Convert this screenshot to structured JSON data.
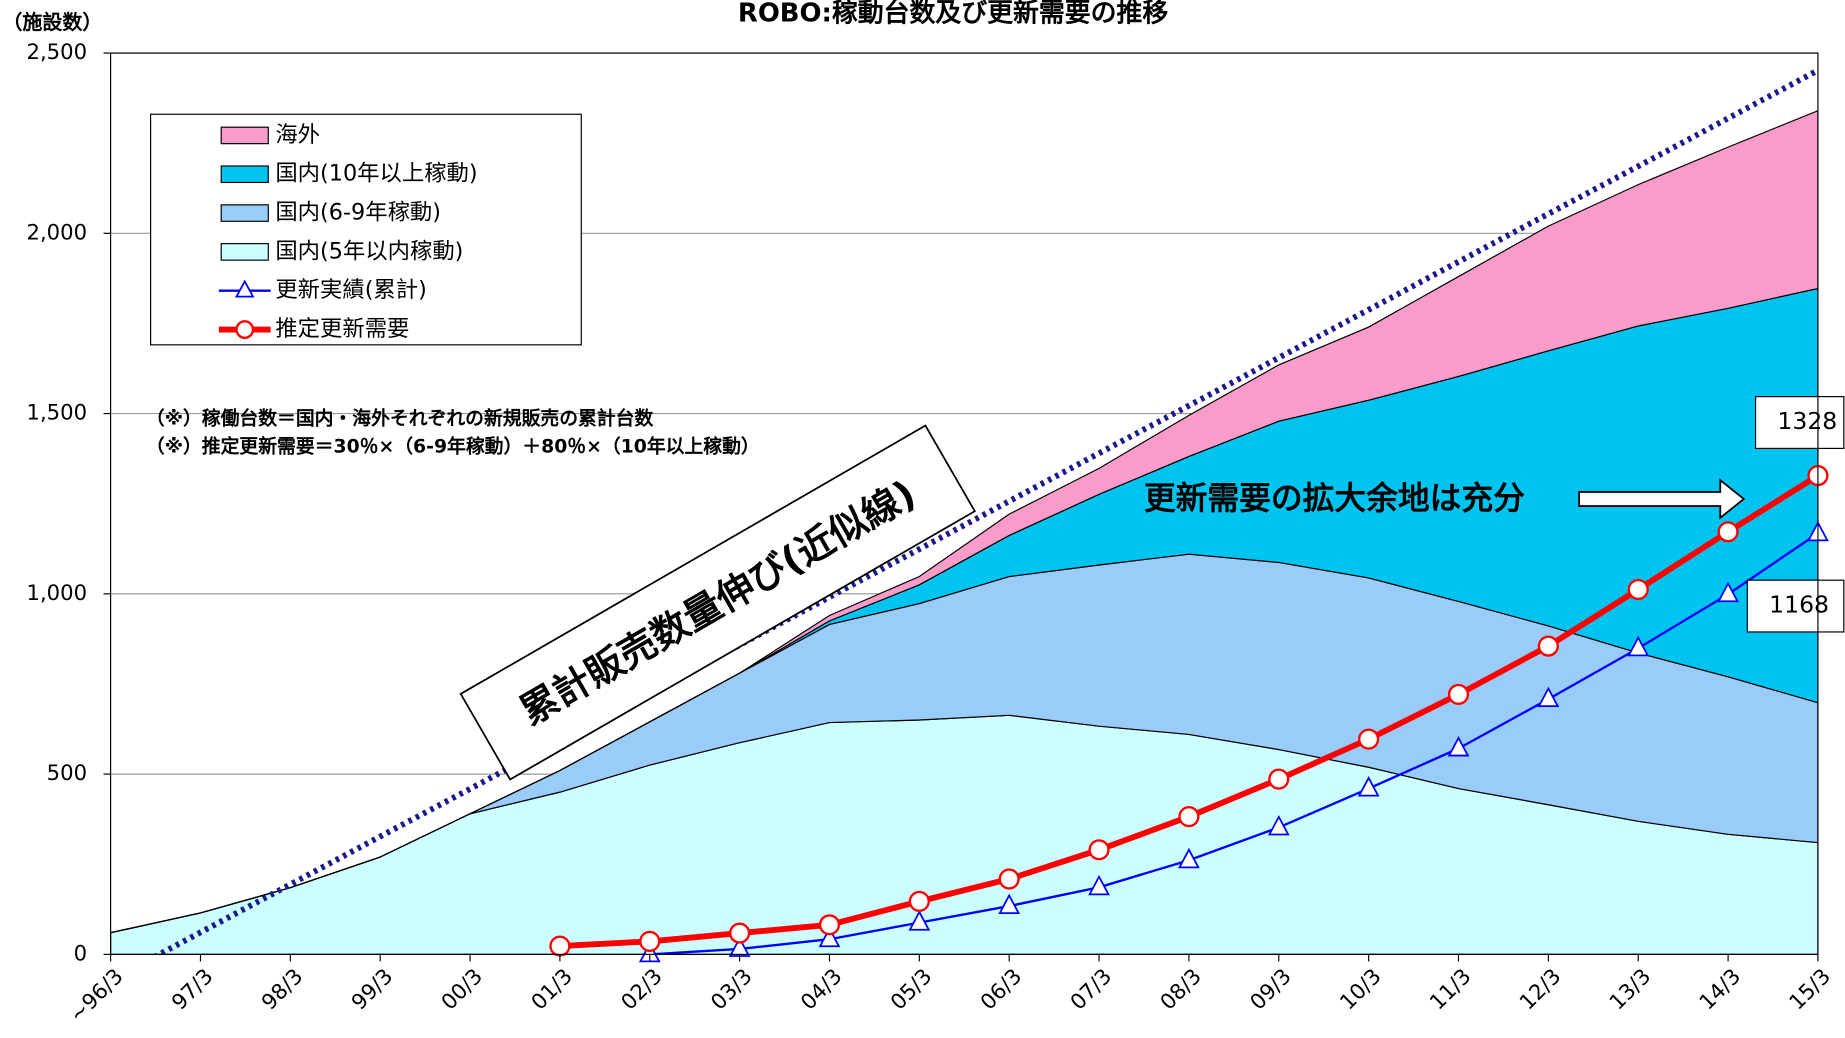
{
  "chart_data": {
    "type": "stacked_area_line",
    "title": "ROBO:稼動台数及び更新需要の推移",
    "y_label": "（施設数）",
    "notes": [
      "（※）稼働台数＝国内・海外それぞれの新規販売の累計台数",
      "（※）推定更新需要＝30％×（6-9年稼動）＋80％×（10年以上稼動）"
    ],
    "annotation": "更新需要の拡大余地は充分",
    "categories": [
      "~96/3",
      "97/3",
      "98/3",
      "99/3",
      "00/3",
      "01/3",
      "02/3",
      "03/3",
      "04/3",
      "05/3",
      "06/3",
      "07/3",
      "08/3",
      "09/3",
      "10/3",
      "11/3",
      "12/3",
      "13/3",
      "14/3",
      "15/3"
    ],
    "ylim": [
      0,
      2500
    ],
    "yticks": [
      0,
      {
        "value": 500,
        "label": "500"
      },
      {
        "value": 1000,
        "label": "1,000"
      },
      {
        "value": 1500,
        "label": "1,500"
      },
      {
        "value": 2000,
        "label": "2,000"
      },
      {
        "value": 2500,
        "label": "2,500"
      }
    ],
    "grid": true,
    "areas": [
      {
        "name": "国内(5年以内稼動)",
        "color": "#ccffff",
        "values": [
          60,
          115,
          185,
          270,
          390,
          450,
          525,
          587,
          643,
          650,
          663,
          633,
          610,
          568,
          519,
          460,
          415,
          369,
          333,
          310
        ]
      },
      {
        "name": "国内(6-9年稼動)",
        "color": "#99ccf8",
        "values": [
          0,
          0,
          0,
          0,
          0,
          60,
          120,
          193,
          272,
          323,
          385,
          447,
          500,
          519,
          525,
          519,
          496,
          467,
          437,
          388
        ]
      },
      {
        "name": "国内(10年以上稼動)",
        "color": "#00c4f0",
        "values": [
          0,
          0,
          0,
          0,
          0,
          0,
          0,
          0,
          10,
          52,
          114,
          196,
          271,
          392,
          493,
          624,
          763,
          907,
          1022,
          1149
        ]
      },
      {
        "name": "海外",
        "color": "#f99cc9",
        "values": [
          0,
          0,
          0,
          0,
          0,
          0,
          0,
          0,
          15,
          23,
          59,
          72,
          114,
          156,
          203,
          277,
          346,
          392,
          447,
          493
        ]
      }
    ],
    "series": [
      {
        "name": "更新実績(累計)",
        "color": "#0000ff",
        "marker": "triangle",
        "values": [
          null,
          null,
          null,
          null,
          null,
          null,
          0,
          15,
          42,
          88,
          134,
          186,
          261,
          352,
          460,
          571,
          708,
          849,
          999,
          1168
        ],
        "value_labels": [
          null,
          null,
          null,
          null,
          null,
          null,
          null,
          null,
          null,
          null,
          null,
          null,
          null,
          null,
          null,
          null,
          null,
          null,
          null,
          "1168"
        ]
      },
      {
        "name": "推定更新需要",
        "color": "#ff0000",
        "marker": "circle",
        "values": [
          null,
          null,
          null,
          null,
          null,
          23,
          36,
          59,
          82,
          147,
          209,
          290,
          382,
          486,
          597,
          721,
          855,
          1012,
          1172,
          1328
        ],
        "value_labels": [
          null,
          null,
          null,
          null,
          null,
          null,
          null,
          null,
          null,
          null,
          null,
          null,
          null,
          null,
          null,
          null,
          null,
          null,
          null,
          "1328"
        ]
      }
    ],
    "trend": {
      "label": "累計販売数量伸び(近似線)",
      "color": "#1a1a8c",
      "values": [
        -72,
        61,
        194,
        327,
        459,
        592,
        725,
        858,
        991,
        1124,
        1257,
        1390,
        1522,
        1655,
        1788,
        1921,
        2054,
        2186,
        2319,
        2452
      ]
    },
    "legend_order": [
      3,
      2,
      1,
      0
    ]
  }
}
